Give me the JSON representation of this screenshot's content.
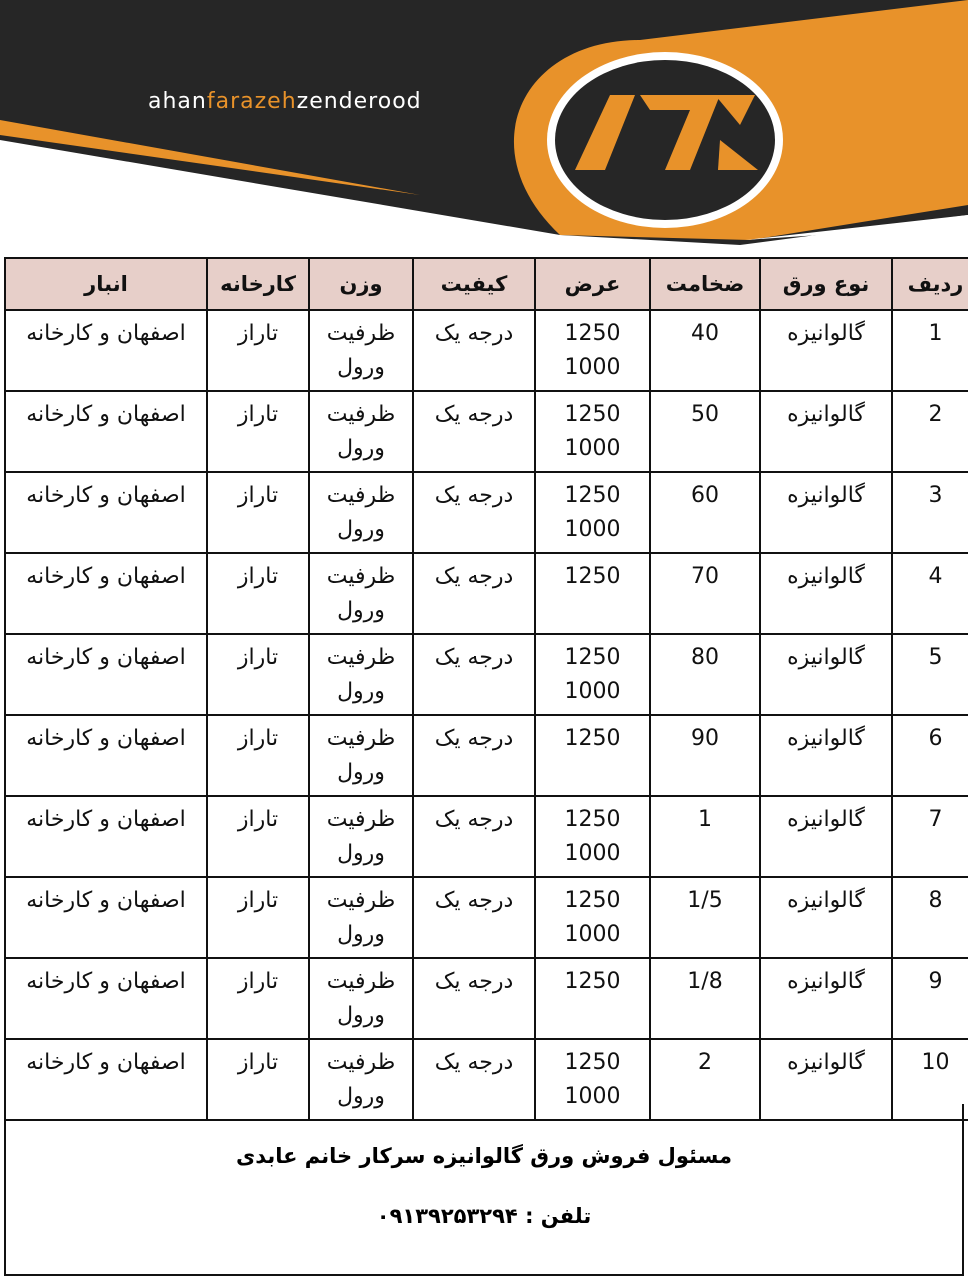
{
  "header": {
    "logo_wordmark": "ahanfarazehzenderood",
    "logo_wordmark_parts": [
      "ahan",
      "farazeh",
      "zenderood"
    ],
    "colors": {
      "dark": "#262626",
      "orange": "#e8922a"
    }
  },
  "table": {
    "columns": [
      "ردیف",
      "نوع ورق",
      "ضخامت",
      "عرض",
      "کیفیت",
      "وزن",
      "کارخانه",
      "انبار"
    ],
    "rows": [
      {
        "n": "1",
        "type": "گالوانیزه",
        "thick": "40",
        "w1": "1250",
        "w2": "1000",
        "q": "درجه یک",
        "wt1": "ظرفیت",
        "wt2": "ورول",
        "fac": "تاراز",
        "store": "اصفهان و کارخانه"
      },
      {
        "n": "2",
        "type": "گالوانیزه",
        "thick": "50",
        "w1": "1250",
        "w2": "1000",
        "q": "درجه یک",
        "wt1": "ظرفیت",
        "wt2": "ورول",
        "fac": "تاراز",
        "store": "اصفهان و کارخانه"
      },
      {
        "n": "3",
        "type": "گالوانیزه",
        "thick": "60",
        "w1": "1250",
        "w2": "1000",
        "q": "درجه یک",
        "wt1": "ظرفیت",
        "wt2": "ورول",
        "fac": "تاراز",
        "store": "اصفهان و کارخانه"
      },
      {
        "n": "4",
        "type": "گالوانیزه",
        "thick": "70",
        "w1": "1250",
        "w2": "",
        "q": "درجه یک",
        "wt1": "ظرفیت",
        "wt2": "ورول",
        "fac": "تاراز",
        "store": "اصفهان و کارخانه"
      },
      {
        "n": "5",
        "type": "گالوانیزه",
        "thick": "80",
        "w1": "1250",
        "w2": "1000",
        "q": "درجه یک",
        "wt1": "ظرفیت",
        "wt2": "ورول",
        "fac": "تاراز",
        "store": "اصفهان و کارخانه"
      },
      {
        "n": "6",
        "type": "گالوانیزه",
        "thick": "90",
        "w1": "1250",
        "w2": "",
        "q": "درجه یک",
        "wt1": "ظرفیت",
        "wt2": "ورول",
        "fac": "تاراز",
        "store": "اصفهان و کارخانه"
      },
      {
        "n": "7",
        "type": "گالوانیزه",
        "thick": "1",
        "w1": "1250",
        "w2": "1000",
        "q": "درجه یک",
        "wt1": "ظرفیت",
        "wt2": "ورول",
        "fac": "تاراز",
        "store": "اصفهان و کارخانه"
      },
      {
        "n": "8",
        "type": "گالوانیزه",
        "thick": "1/5",
        "w1": "1250",
        "w2": "1000",
        "q": "درجه یک",
        "wt1": "ظرفیت",
        "wt2": "ورول",
        "fac": "تاراز",
        "store": "اصفهان و کارخانه"
      },
      {
        "n": "9",
        "type": "گالوانیزه",
        "thick": "1/8",
        "w1": "1250",
        "w2": "",
        "q": "درجه یک",
        "wt1": "ظرفیت",
        "wt2": "ورول",
        "fac": "تاراز",
        "store": "اصفهان و کارخانه"
      },
      {
        "n": "10",
        "type": "گالوانیزه",
        "thick": "2",
        "w1": "1250",
        "w2": "1000",
        "q": "درجه یک",
        "wt1": "ظرفیت",
        "wt2": "ورول",
        "fac": "تاراز",
        "store": "اصفهان و کارخانه"
      }
    ]
  },
  "footer": {
    "contact": "مسئول فروش ورق گالوانیزه سرکار خانم عابدی",
    "phone_label": "تلفن :",
    "phone": "۰۹۱۳۹۲۵۳۲۹۴"
  }
}
